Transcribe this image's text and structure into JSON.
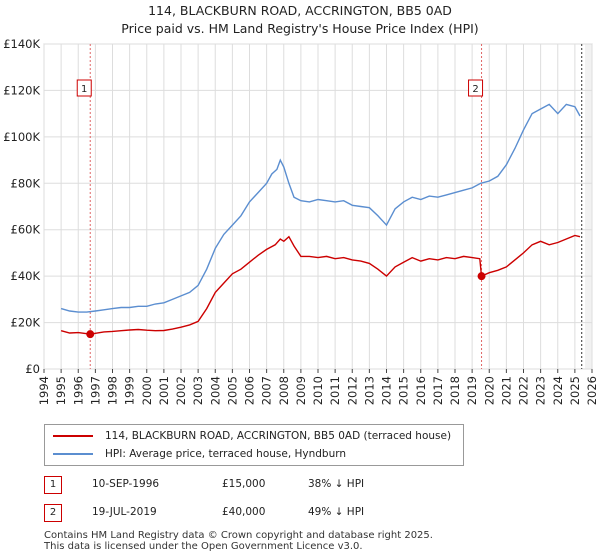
{
  "title_line1": "114, BLACKBURN ROAD, ACCRINGTON, BB5 0AD",
  "title_line2": "Price paid vs. HM Land Registry's House Price Index (HPI)",
  "chart_data": {
    "type": "line",
    "title": "114, BLACKBURN ROAD, ACCRINGTON, BB5 0AD — Price paid vs. HM Land Registry's House Price Index (HPI)",
    "xlabel": "",
    "ylabel": "",
    "xlim": [
      1994,
      2026
    ],
    "ylim": [
      0,
      140000
    ],
    "grid": true,
    "y_ticks": [
      0,
      20000,
      40000,
      60000,
      80000,
      100000,
      120000,
      140000
    ],
    "y_tick_labels": [
      "£0",
      "£20K",
      "£40K",
      "£60K",
      "£80K",
      "£100K",
      "£120K",
      "£140K"
    ],
    "x_ticks": [
      1994,
      1995,
      1996,
      1997,
      1998,
      1999,
      2000,
      2001,
      2002,
      2003,
      2004,
      2005,
      2006,
      2007,
      2008,
      2009,
      2010,
      2011,
      2012,
      2013,
      2014,
      2015,
      2016,
      2017,
      2018,
      2019,
      2020,
      2021,
      2022,
      2023,
      2024,
      2025,
      2026
    ],
    "series": [
      {
        "name": "114, BLACKBURN ROAD, ACCRINGTON, BB5 0AD (terraced house)",
        "color": "#cc0000",
        "x": [
          1995.0,
          1995.5,
          1996.0,
          1996.5,
          1996.7,
          1997.0,
          1997.5,
          1998.0,
          1998.5,
          1999.0,
          1999.5,
          2000.0,
          2000.5,
          2001.0,
          2001.5,
          2002.0,
          2002.5,
          2003.0,
          2003.5,
          2004.0,
          2004.5,
          2005.0,
          2005.5,
          2006.0,
          2006.5,
          2007.0,
          2007.5,
          2007.8,
          2008.0,
          2008.3,
          2008.6,
          2009.0,
          2009.5,
          2010.0,
          2010.5,
          2011.0,
          2011.5,
          2012.0,
          2012.5,
          2013.0,
          2013.5,
          2014.0,
          2014.5,
          2015.0,
          2015.5,
          2016.0,
          2016.5,
          2017.0,
          2017.5,
          2018.0,
          2018.5,
          2019.0,
          2019.45,
          2019.55,
          2020.0,
          2020.5,
          2021.0,
          2021.5,
          2022.0,
          2022.5,
          2023.0,
          2023.5,
          2024.0,
          2024.5,
          2025.0,
          2025.3
        ],
        "values": [
          16500,
          15500,
          15700,
          15200,
          15000,
          15400,
          16000,
          16200,
          16500,
          16800,
          17000,
          16700,
          16500,
          16600,
          17200,
          18000,
          19000,
          20500,
          26000,
          33000,
          37000,
          41000,
          43000,
          46000,
          49000,
          51500,
          53500,
          56000,
          55000,
          57000,
          53000,
          48500,
          48500,
          48000,
          48500,
          47500,
          48000,
          47000,
          46500,
          45500,
          43000,
          40000,
          44000,
          46000,
          48000,
          46500,
          47500,
          47000,
          48000,
          47500,
          48500,
          48000,
          47500,
          40000,
          41500,
          42500,
          44000,
          47000,
          50000,
          53500,
          55000,
          53500,
          54500,
          56000,
          57500,
          57000
        ]
      },
      {
        "name": "HPI: Average price, terraced house, Hyndburn",
        "color": "#5b8ed0",
        "x": [
          1995.0,
          1995.5,
          1996.0,
          1996.5,
          1997.0,
          1997.5,
          1998.0,
          1998.5,
          1999.0,
          1999.5,
          2000.0,
          2000.5,
          2001.0,
          2001.5,
          2002.0,
          2002.5,
          2003.0,
          2003.5,
          2004.0,
          2004.5,
          2005.0,
          2005.5,
          2006.0,
          2006.5,
          2007.0,
          2007.3,
          2007.6,
          2007.8,
          2008.0,
          2008.3,
          2008.6,
          2009.0,
          2009.5,
          2010.0,
          2010.5,
          2011.0,
          2011.5,
          2012.0,
          2012.5,
          2013.0,
          2013.5,
          2014.0,
          2014.5,
          2015.0,
          2015.5,
          2016.0,
          2016.5,
          2017.0,
          2017.5,
          2018.0,
          2018.5,
          2019.0,
          2019.5,
          2020.0,
          2020.5,
          2021.0,
          2021.5,
          2022.0,
          2022.5,
          2023.0,
          2023.5,
          2024.0,
          2024.5,
          2025.0,
          2025.3
        ],
        "values": [
          26000,
          25000,
          24500,
          24500,
          25000,
          25500,
          26000,
          26500,
          26500,
          27000,
          27000,
          28000,
          28500,
          30000,
          31500,
          33000,
          36000,
          43000,
          52000,
          58000,
          62000,
          66000,
          72000,
          76000,
          80000,
          84000,
          86000,
          90000,
          87000,
          80000,
          74000,
          72500,
          72000,
          73000,
          72500,
          72000,
          72500,
          70500,
          70000,
          69500,
          66000,
          62000,
          69000,
          72000,
          74000,
          73000,
          74500,
          74000,
          75000,
          76000,
          77000,
          78000,
          80000,
          81000,
          83000,
          88000,
          95000,
          103000,
          110000,
          112000,
          114000,
          110000,
          114000,
          113000,
          109000
        ]
      }
    ],
    "annotations": [
      {
        "label": "1",
        "x": 1996.7,
        "value": 15000
      },
      {
        "label": "2",
        "x": 2019.55,
        "value": 40000
      }
    ]
  },
  "legend": {
    "property_label": "114, BLACKBURN ROAD, ACCRINGTON, BB5 0AD (terraced house)",
    "hpi_label": "HPI: Average price, terraced house, Hyndburn"
  },
  "sales": [
    {
      "num": "1",
      "date": "10-SEP-1996",
      "price": "£15,000",
      "hpi": "38% ↓ HPI"
    },
    {
      "num": "2",
      "date": "19-JUL-2019",
      "price": "£40,000",
      "hpi": "49% ↓ HPI"
    }
  ],
  "footer": {
    "line1": "Contains HM Land Registry data © Crown copyright and database right 2025.",
    "line2": "This data is licensed under the Open Government Licence v3.0."
  }
}
